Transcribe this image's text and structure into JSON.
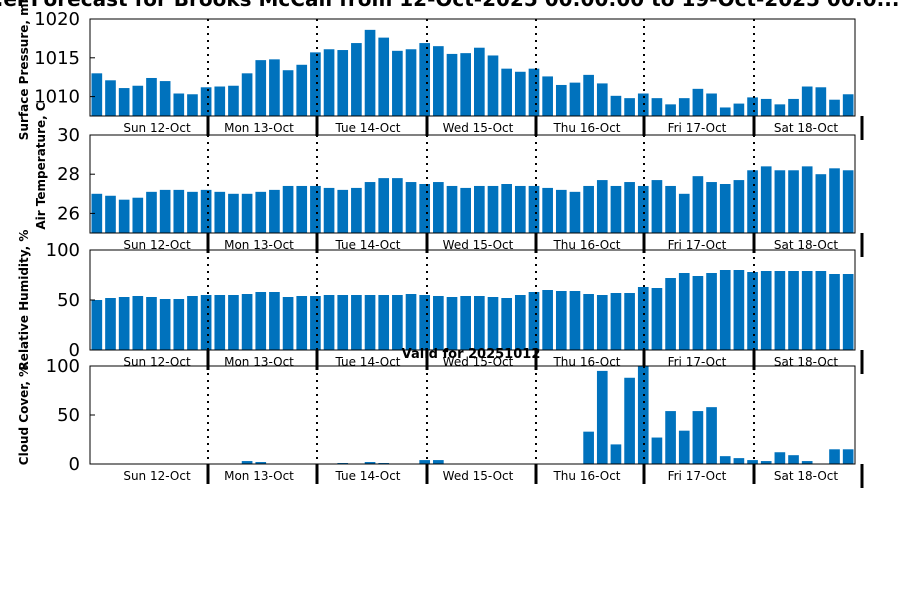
{
  "title": "...el Forecast for Brooks McCall from 12-Oct-2025 00:00:00 to 19-Oct-2025 00:0...",
  "subtitle": "Valid for 20251012",
  "colors": {
    "bar": "#0072BD",
    "axis": "#000000"
  },
  "chart_data": [
    {
      "type": "bar",
      "ylabel": "Surface Pressure, mb",
      "ylim": [
        1007.5,
        1020
      ],
      "yticks": [
        "1010",
        "1015",
        "1020"
      ],
      "xtick_labels": [
        "Sun 12-Oct",
        "Mon 13-Oct",
        "Tue 14-Oct",
        "Wed 15-Oct",
        "Thu 16-Oct",
        "Fri 17-Oct",
        "Sat 18-Oct"
      ],
      "values": [
        1013.0,
        1012.1,
        1011.1,
        1011.4,
        1012.4,
        1012.0,
        1010.4,
        1010.3,
        1011.2,
        1011.3,
        1011.4,
        1013.0,
        1014.7,
        1014.8,
        1013.4,
        1014.1,
        1015.7,
        1016.1,
        1016.0,
        1016.9,
        1018.6,
        1017.6,
        1015.9,
        1016.1,
        1016.9,
        1016.5,
        1015.5,
        1015.6,
        1016.3,
        1015.3,
        1013.6,
        1013.2,
        1013.6,
        1012.6,
        1011.5,
        1011.8,
        1012.8,
        1011.7,
        1010.1,
        1009.8,
        1010.4,
        1009.8,
        1009.0,
        1009.8,
        1011.0,
        1010.4,
        1008.6,
        1009.1,
        1009.9,
        1009.7,
        1009.0,
        1009.7,
        1011.3,
        1011.2,
        1009.6,
        1010.3
      ]
    },
    {
      "type": "bar",
      "ylabel": "Air Temperature, C",
      "ylim": [
        25,
        30
      ],
      "yticks": [
        "26",
        "28",
        "30"
      ],
      "xtick_labels": [
        "Sun 12-Oct",
        "Mon 13-Oct",
        "Tue 14-Oct",
        "Wed 15-Oct",
        "Thu 16-Oct",
        "Fri 17-Oct",
        "Sat 18-Oct"
      ],
      "values": [
        27.0,
        26.9,
        26.7,
        26.8,
        27.1,
        27.2,
        27.2,
        27.1,
        27.2,
        27.1,
        27.0,
        27.0,
        27.1,
        27.2,
        27.4,
        27.4,
        27.4,
        27.3,
        27.2,
        27.3,
        27.6,
        27.8,
        27.8,
        27.6,
        27.5,
        27.6,
        27.4,
        27.3,
        27.4,
        27.4,
        27.5,
        27.4,
        27.4,
        27.3,
        27.2,
        27.1,
        27.4,
        27.7,
        27.4,
        27.6,
        27.4,
        27.7,
        27.4,
        27.0,
        27.9,
        27.6,
        27.5,
        27.7,
        28.2,
        28.4,
        28.2,
        28.2,
        28.4,
        28.0,
        28.3,
        28.2
      ]
    },
    {
      "type": "bar",
      "ylabel": "Relative Humidity, %",
      "ylim": [
        0,
        100
      ],
      "yticks": [
        "0",
        "50",
        "100"
      ],
      "xtick_labels": [
        "Sun 12-Oct",
        "Mon 13-Oct",
        "Tue 14-Oct",
        "Wed 15-Oct",
        "Thu 16-Oct",
        "Fri 17-Oct",
        "Sat 18-Oct"
      ],
      "values": [
        50,
        52,
        53,
        54,
        53,
        51,
        51,
        54,
        55,
        55,
        55,
        56,
        58,
        58,
        53,
        54,
        54,
        55,
        55,
        55,
        55,
        55,
        55,
        56,
        55,
        54,
        53,
        54,
        54,
        53,
        52,
        55,
        58,
        60,
        59,
        59,
        56,
        55,
        57,
        57,
        63,
        62,
        72,
        77,
        74,
        77,
        80,
        80,
        78,
        79,
        79,
        79,
        79,
        79,
        76,
        76
      ]
    },
    {
      "type": "bar",
      "ylabel": "Cloud Cover, %",
      "ylim": [
        0,
        100
      ],
      "yticks": [
        "0",
        "50",
        "100"
      ],
      "xtick_labels": [
        "Sun 12-Oct",
        "Mon 13-Oct",
        "Tue 14-Oct",
        "Wed 15-Oct",
        "Thu 16-Oct",
        "Fri 17-Oct",
        "Sat 18-Oct"
      ],
      "values": [
        0,
        0,
        0,
        0,
        0,
        0,
        0,
        0,
        0,
        0,
        0,
        3,
        2,
        0,
        0,
        0,
        0,
        0,
        1,
        0,
        2,
        1,
        0,
        0,
        4,
        4,
        0,
        0,
        0,
        0,
        0,
        0,
        0,
        0,
        0,
        0,
        33,
        95,
        20,
        88,
        100,
        27,
        54,
        34,
        54,
        58,
        8,
        6,
        4,
        3,
        12,
        9,
        3,
        0,
        15,
        15
      ]
    }
  ]
}
